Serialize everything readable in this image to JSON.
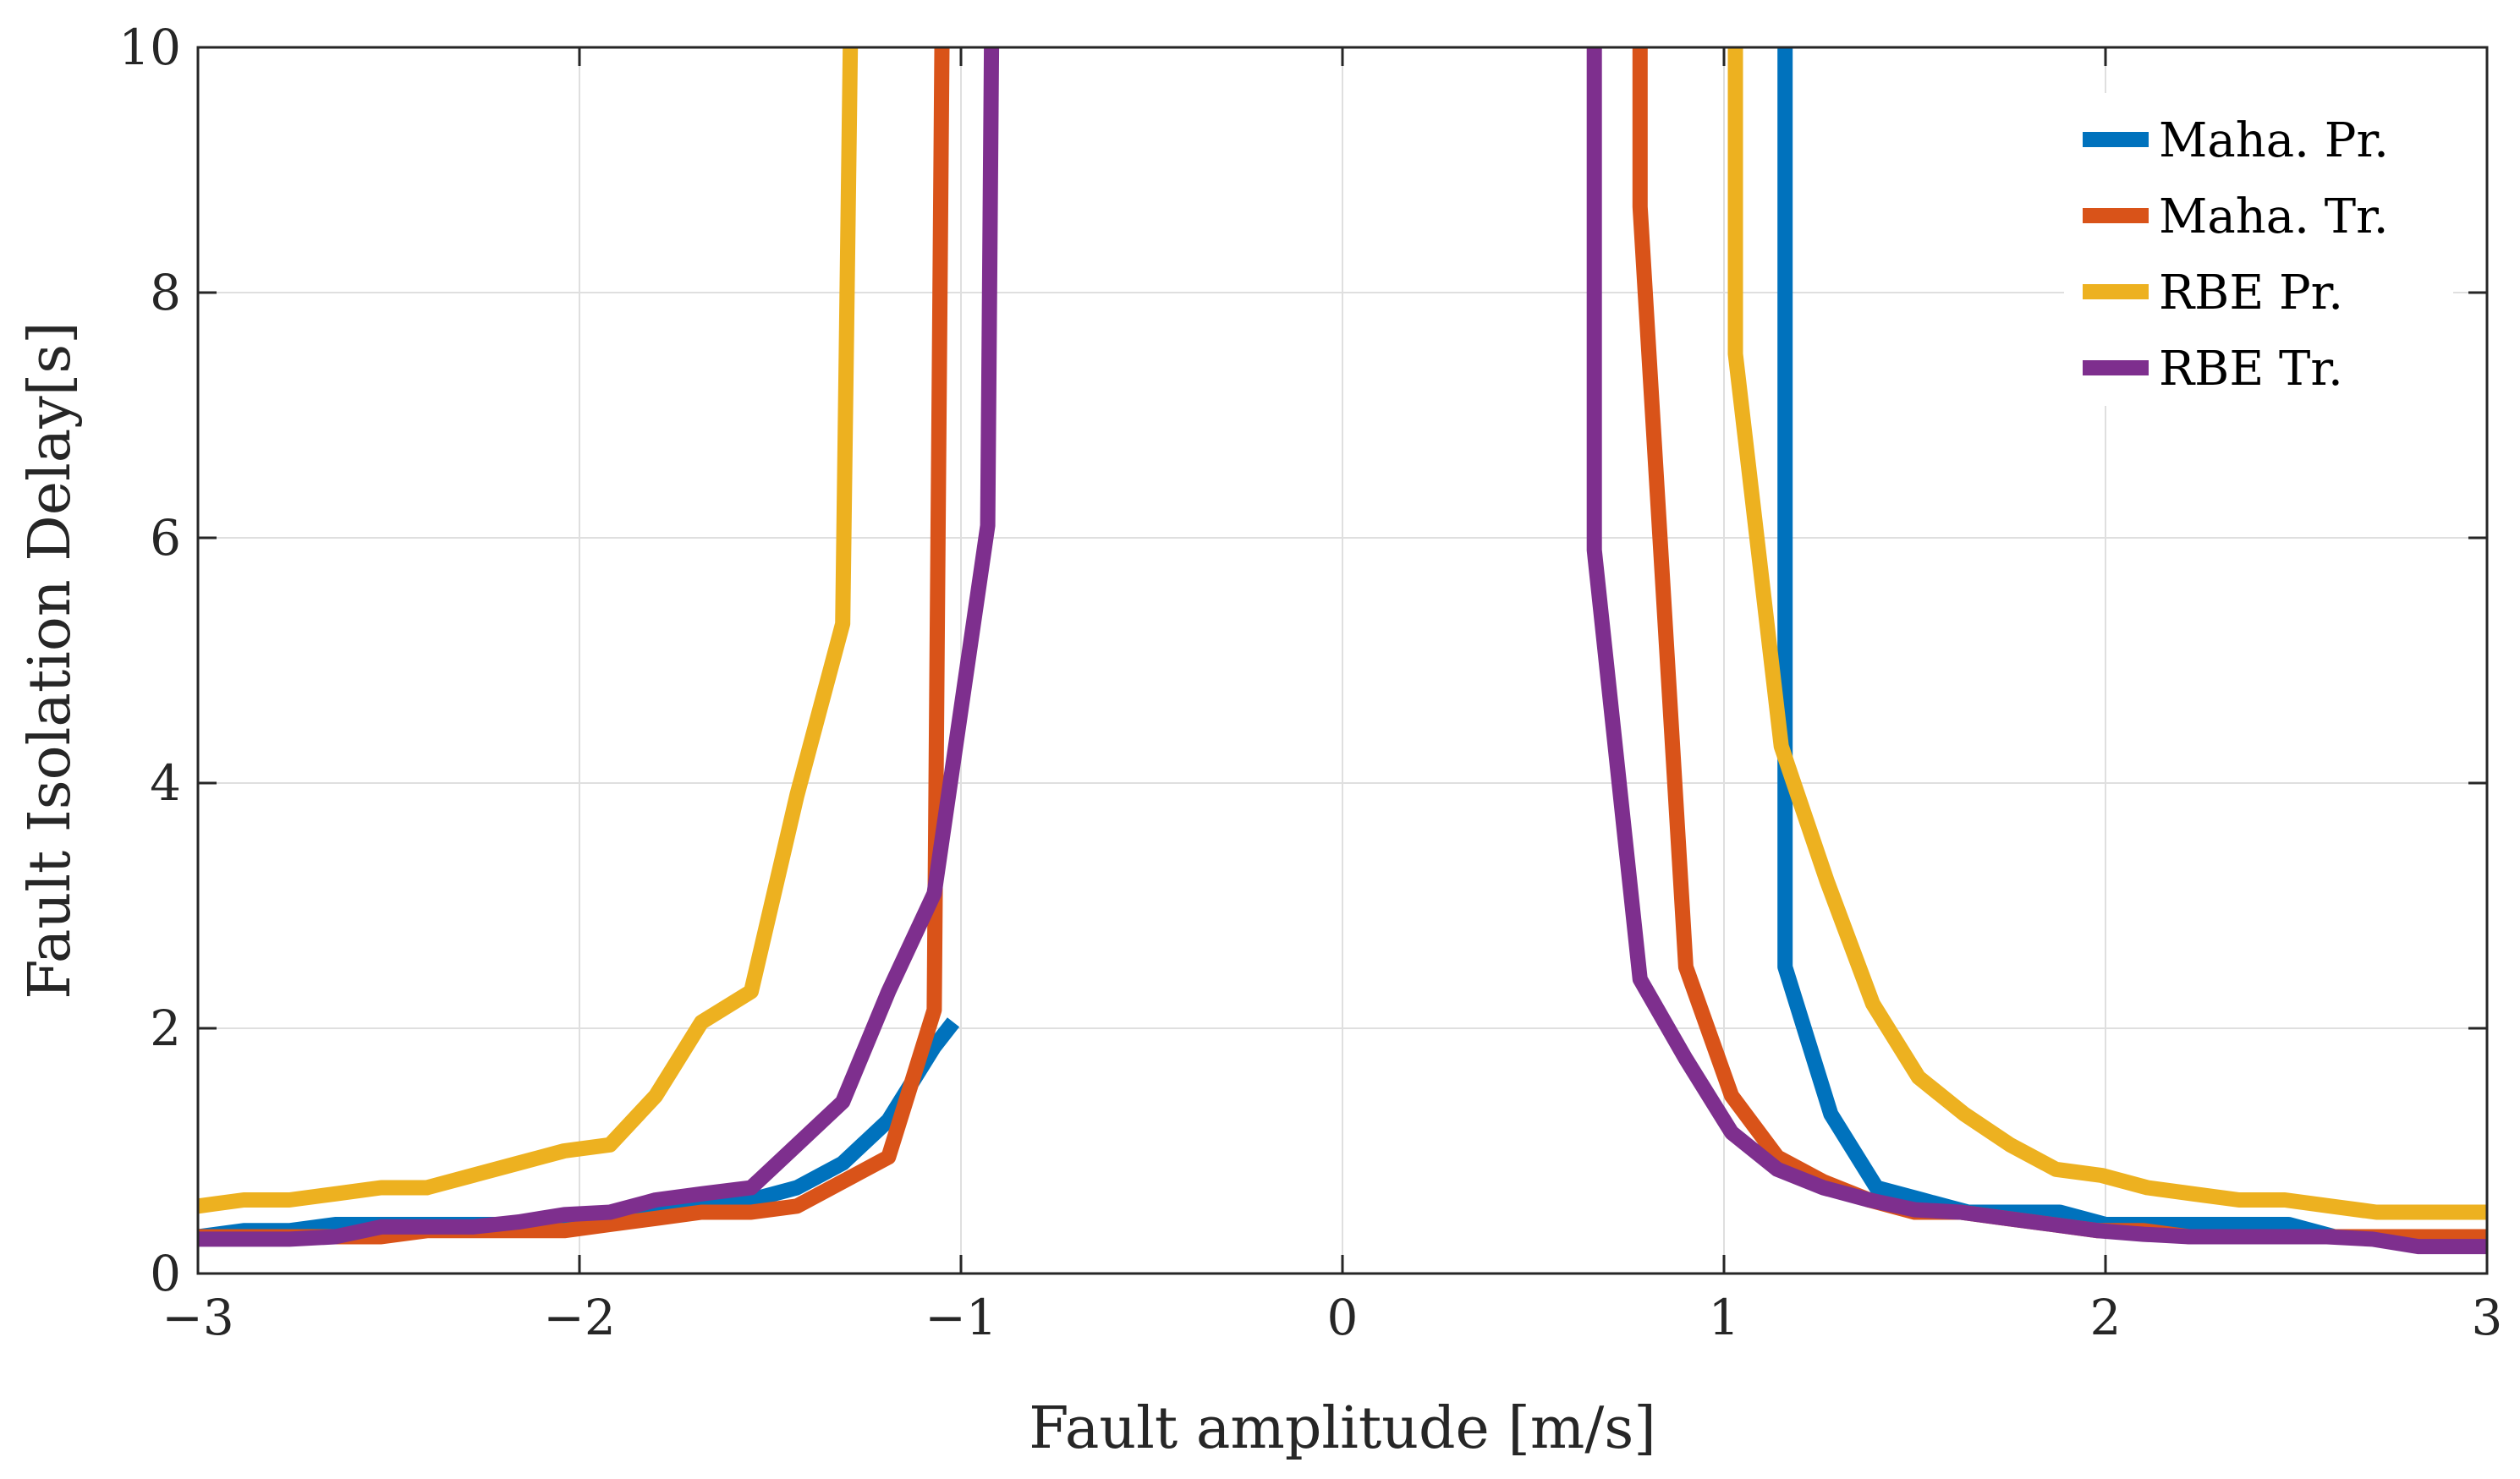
{
  "chart_data": {
    "type": "line",
    "title": "",
    "xlabel": "Fault amplitude [m/s]",
    "ylabel": "Fault Isolation Delay[s]",
    "xlim": [
      -3,
      3
    ],
    "ylim": [
      0,
      10
    ],
    "xticks": [
      -3,
      -2,
      -1,
      0,
      1,
      2,
      3
    ],
    "xtick_labels": [
      "−3",
      "−2",
      "−1",
      "0",
      "1",
      "2",
      "3"
    ],
    "yticks": [
      0,
      2,
      4,
      6,
      8,
      10
    ],
    "ytick_labels": [
      "0",
      "2",
      "4",
      "6",
      "8",
      "10"
    ],
    "grid": true,
    "legend_position": "top-right",
    "series": [
      {
        "name": "Maha. Pr.",
        "color": "#0072BD",
        "segments": [
          [
            [
              -3.0,
              0.3
            ],
            [
              -2.88,
              0.35
            ],
            [
              -2.76,
              0.35
            ],
            [
              -2.64,
              0.4
            ],
            [
              -2.52,
              0.4
            ],
            [
              -2.4,
              0.4
            ],
            [
              -2.28,
              0.4
            ],
            [
              -2.16,
              0.4
            ],
            [
              -2.04,
              0.45
            ],
            [
              -1.92,
              0.45
            ],
            [
              -1.8,
              0.5
            ],
            [
              -1.68,
              0.55
            ],
            [
              -1.55,
              0.6
            ],
            [
              -1.43,
              0.7
            ],
            [
              -1.31,
              0.9
            ],
            [
              -1.19,
              1.25
            ],
            [
              -1.07,
              1.85
            ],
            [
              -1.02,
              2.05
            ]
          ],
          [
            [
              1.16,
              10.0
            ],
            [
              1.16,
              2.5
            ],
            [
              1.28,
              1.3
            ],
            [
              1.4,
              0.7
            ],
            [
              1.52,
              0.6
            ],
            [
              1.64,
              0.5
            ],
            [
              1.76,
              0.5
            ],
            [
              1.88,
              0.5
            ],
            [
              2.0,
              0.4
            ],
            [
              2.12,
              0.4
            ],
            [
              2.24,
              0.4
            ],
            [
              2.36,
              0.4
            ],
            [
              2.48,
              0.4
            ],
            [
              2.6,
              0.3
            ],
            [
              2.72,
              0.3
            ],
            [
              2.84,
              0.3
            ],
            [
              3.0,
              0.3
            ]
          ]
        ]
      },
      {
        "name": "Maha. Tr.",
        "color": "#D95319",
        "segments": [
          [
            [
              -3.0,
              0.3
            ],
            [
              -2.88,
              0.3
            ],
            [
              -2.76,
              0.3
            ],
            [
              -2.64,
              0.3
            ],
            [
              -2.52,
              0.3
            ],
            [
              -2.4,
              0.35
            ],
            [
              -2.28,
              0.35
            ],
            [
              -2.16,
              0.35
            ],
            [
              -2.04,
              0.35
            ],
            [
              -1.92,
              0.4
            ],
            [
              -1.8,
              0.45
            ],
            [
              -1.68,
              0.5
            ],
            [
              -1.55,
              0.5
            ],
            [
              -1.43,
              0.55
            ],
            [
              -1.31,
              0.75
            ],
            [
              -1.19,
              0.95
            ],
            [
              -1.07,
              2.15
            ],
            [
              -1.05,
              10.0
            ]
          ],
          [
            [
              0.78,
              10.0
            ],
            [
              0.78,
              8.7
            ],
            [
              0.9,
              2.5
            ],
            [
              1.02,
              1.45
            ],
            [
              1.14,
              0.95
            ],
            [
              1.26,
              0.75
            ],
            [
              1.38,
              0.6
            ],
            [
              1.5,
              0.5
            ],
            [
              1.62,
              0.5
            ],
            [
              1.74,
              0.45
            ],
            [
              1.86,
              0.4
            ],
            [
              1.98,
              0.35
            ],
            [
              2.1,
              0.35
            ],
            [
              2.22,
              0.3
            ],
            [
              2.34,
              0.3
            ],
            [
              2.46,
              0.3
            ],
            [
              2.58,
              0.3
            ],
            [
              2.7,
              0.3
            ],
            [
              2.82,
              0.3
            ],
            [
              3.0,
              0.3
            ]
          ]
        ]
      },
      {
        "name": "RBE Pr.",
        "color": "#EDB120",
        "segments": [
          [
            [
              -3.0,
              0.55
            ],
            [
              -2.88,
              0.6
            ],
            [
              -2.76,
              0.6
            ],
            [
              -2.64,
              0.65
            ],
            [
              -2.52,
              0.7
            ],
            [
              -2.4,
              0.7
            ],
            [
              -2.28,
              0.8
            ],
            [
              -2.16,
              0.9
            ],
            [
              -2.04,
              1.0
            ],
            [
              -1.92,
              1.05
            ],
            [
              -1.8,
              1.45
            ],
            [
              -1.68,
              2.05
            ],
            [
              -1.55,
              2.3
            ],
            [
              -1.43,
              3.9
            ],
            [
              -1.31,
              5.3
            ],
            [
              -1.29,
              10.0
            ]
          ],
          [
            [
              1.03,
              10.0
            ],
            [
              1.03,
              7.5
            ],
            [
              1.15,
              4.3
            ],
            [
              1.27,
              3.2
            ],
            [
              1.39,
              2.2
            ],
            [
              1.51,
              1.6
            ],
            [
              1.63,
              1.3
            ],
            [
              1.75,
              1.05
            ],
            [
              1.87,
              0.85
            ],
            [
              1.99,
              0.8
            ],
            [
              2.11,
              0.7
            ],
            [
              2.23,
              0.65
            ],
            [
              2.35,
              0.6
            ],
            [
              2.47,
              0.6
            ],
            [
              2.59,
              0.55
            ],
            [
              2.71,
              0.5
            ],
            [
              2.83,
              0.5
            ],
            [
              3.0,
              0.5
            ]
          ]
        ]
      },
      {
        "name": "RBE Tr.",
        "color": "#7E2F8E",
        "segments": [
          [
            [
              -3.0,
              0.28
            ],
            [
              -2.88,
              0.28
            ],
            [
              -2.76,
              0.28
            ],
            [
              -2.64,
              0.3
            ],
            [
              -2.52,
              0.38
            ],
            [
              -2.4,
              0.38
            ],
            [
              -2.28,
              0.38
            ],
            [
              -2.16,
              0.42
            ],
            [
              -2.04,
              0.48
            ],
            [
              -1.92,
              0.5
            ],
            [
              -1.8,
              0.6
            ],
            [
              -1.68,
              0.65
            ],
            [
              -1.55,
              0.7
            ],
            [
              -1.43,
              1.05
            ],
            [
              -1.31,
              1.4
            ],
            [
              -1.19,
              2.3
            ],
            [
              -1.07,
              3.1
            ],
            [
              -0.93,
              6.1
            ],
            [
              -0.92,
              10.0
            ]
          ],
          [
            [
              0.66,
              10.0
            ],
            [
              0.66,
              5.9
            ],
            [
              0.78,
              2.4
            ],
            [
              0.9,
              1.75
            ],
            [
              1.02,
              1.15
            ],
            [
              1.14,
              0.85
            ],
            [
              1.26,
              0.7
            ],
            [
              1.38,
              0.6
            ],
            [
              1.5,
              0.52
            ],
            [
              1.62,
              0.5
            ],
            [
              1.74,
              0.45
            ],
            [
              1.86,
              0.4
            ],
            [
              1.98,
              0.35
            ],
            [
              2.1,
              0.32
            ],
            [
              2.22,
              0.3
            ],
            [
              2.34,
              0.3
            ],
            [
              2.46,
              0.3
            ],
            [
              2.58,
              0.3
            ],
            [
              2.7,
              0.28
            ],
            [
              2.82,
              0.22
            ],
            [
              3.0,
              0.22
            ]
          ]
        ]
      }
    ]
  }
}
